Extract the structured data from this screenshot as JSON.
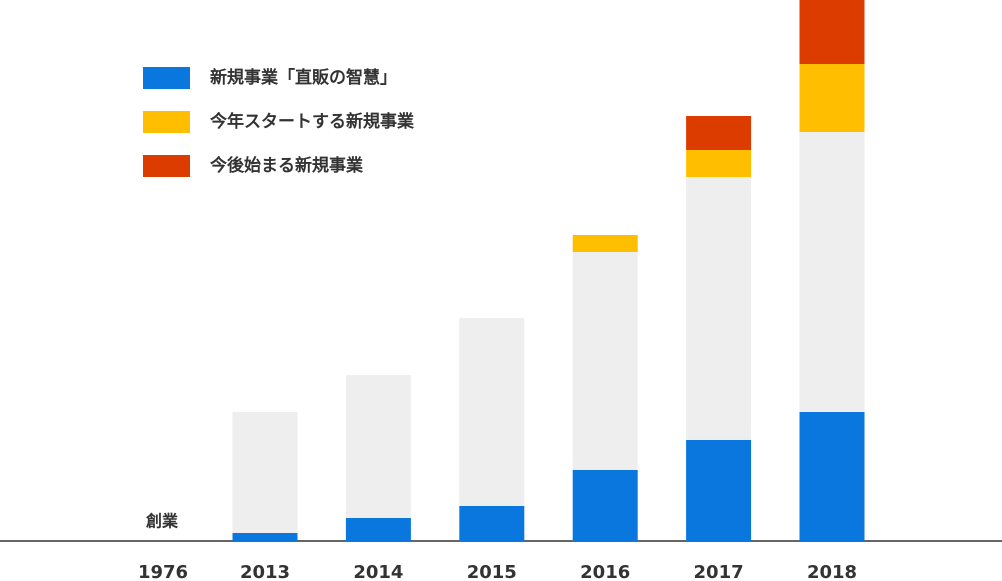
{
  "chart_data": {
    "type": "bar",
    "stacked": true,
    "categories": [
      "1976",
      "2013",
      "2014",
      "2015",
      "2016",
      "2017",
      "2018"
    ],
    "annotation": "創業",
    "ylim": [
      0,
      541
    ],
    "series": [
      {
        "name": "新規事業「直販の智慧」",
        "color": "#0a77de",
        "values": [
          null,
          8,
          23,
          35,
          71,
          101,
          129
        ]
      },
      {
        "color": "#eeeeee",
        "values": [
          null,
          121,
          143,
          188,
          218,
          263,
          280
        ]
      },
      {
        "name": "今年スタートする新規事業",
        "color": "#ffbf00",
        "values": [
          null,
          null,
          null,
          null,
          17,
          27,
          68
        ]
      },
      {
        "name": "今後始まる新規事業",
        "color": "#dc3c00",
        "values": [
          null,
          null,
          null,
          null,
          null,
          34,
          64
        ]
      }
    ]
  }
}
